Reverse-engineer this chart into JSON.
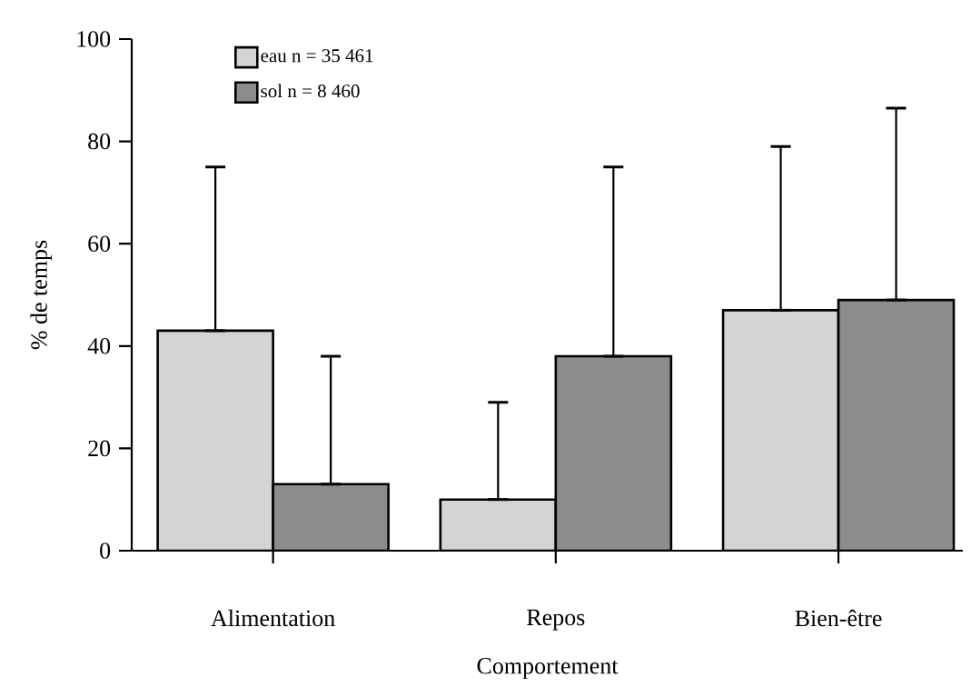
{
  "chart_data": {
    "type": "bar",
    "xlabel": "Comportement",
    "ylabel": "% de temps",
    "categories": [
      "Alimentation",
      "Repos",
      "Bien-être"
    ],
    "series": [
      {
        "name": "eau n = 35 461",
        "color": "#d4d4d4",
        "values": [
          43,
          10,
          47
        ],
        "errors": [
          [
            43,
            75
          ],
          [
            10,
            29
          ],
          [
            47,
            79
          ]
        ]
      },
      {
        "name": "sol n = 8 460",
        "color": "#8c8c8c",
        "values": [
          13,
          38,
          49
        ],
        "errors": [
          [
            13,
            38
          ],
          [
            38,
            75
          ],
          [
            49,
            86.5
          ]
        ]
      }
    ],
    "ylim": [
      0,
      100
    ],
    "yticks": [
      0,
      20,
      40,
      60,
      80,
      100
    ],
    "legend": "top left"
  }
}
